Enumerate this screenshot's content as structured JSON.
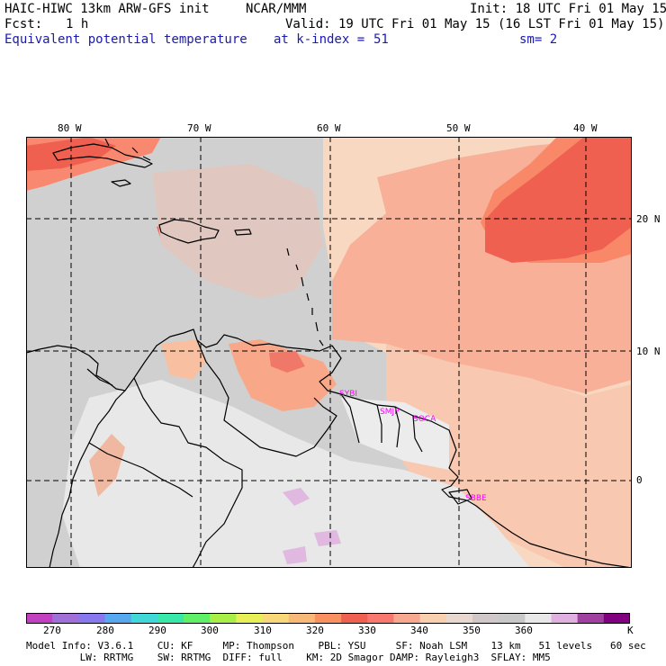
{
  "header": {
    "model": "HAIC-HIWC 13km ARW-GFS init",
    "org": "NCAR/MMM",
    "init": "Init: 18 UTC Fri 01 May 15",
    "fcst_label": "Fcst:",
    "fcst_value": "1 h",
    "valid": "Valid: 19 UTC Fri 01 May 15 (16 LST Fri 01 May 15)",
    "field": "Equivalent potential temperature",
    "level": "at k-index =",
    "level_value": "51",
    "smooth": "sm= 2"
  },
  "map": {
    "lon_labels": [
      "80 W",
      "70 W",
      "60 W",
      "50 W",
      "40 W"
    ],
    "lat_labels": [
      "20 N",
      "10 N",
      "0"
    ],
    "stations": [
      "SYBI",
      "SMJP",
      "SOCA",
      "SBBE"
    ]
  },
  "colorbar": {
    "colors": [
      "#c040c0",
      "#a070d8",
      "#8878ee",
      "#58a8f0",
      "#40d8d8",
      "#38e8a8",
      "#60f068",
      "#a8f048",
      "#e8f058",
      "#f8d878",
      "#f8b878",
      "#f89060",
      "#f06050",
      "#f87870",
      "#f8a890",
      "#f8d0b0",
      "#e8d8d0",
      "#d0c8c8",
      "#c8c8c8",
      "#e8e8e8",
      "#e0b0e0",
      "#a040a0",
      "#800080"
    ],
    "labels": [
      "270",
      "280",
      "290",
      "300",
      "310",
      "320",
      "330",
      "340",
      "350",
      "360"
    ],
    "unit": "K"
  },
  "footer": {
    "line1": "Model Info: V3.6.1    CU: KF     MP: Thompson    PBL: YSU     SF: Noah LSM    13 km   51 levels   60 sec",
    "line2": "         LW: RRTMG    SW: RRTMG  DIFF: full    KM: 2D Smagor DAMP: Rayleigh3  SFLAY: MM5"
  }
}
